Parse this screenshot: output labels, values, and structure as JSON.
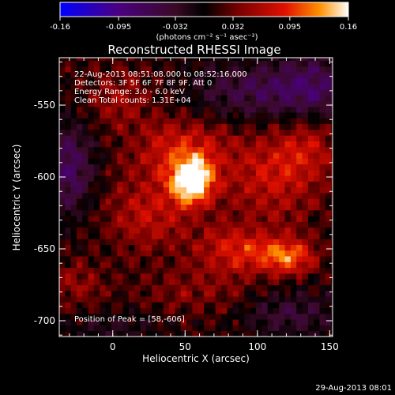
{
  "chart_data": {
    "type": "heatmap",
    "title": "Reconstructed RHESSI Image",
    "xlabel": "Heliocentric X (arcsec)",
    "ylabel": "Heliocentric Y (arcsec)",
    "xlim": [
      -37,
      152
    ],
    "ylim": [
      -711,
      -517
    ],
    "x_ticks": [
      0,
      50,
      100,
      150
    ],
    "y_ticks": [
      -550,
      -600,
      -650,
      -700
    ],
    "annotations": [
      "22-Aug-2013 08:51:08.000 to 08:52:16.000",
      "Detectors: 3F 5F 6F 7F 8F 9F, Att 0",
      "Energy Range: 3.0 - 6.0 keV",
      "Clean     Total counts: 1.31E+04"
    ],
    "peak_label": "Position of Peak = [58,-606]",
    "peak": {
      "x": 58,
      "y": -606
    },
    "colorbar": {
      "min": -0.16,
      "max": 0.16,
      "ticks": [
        "-0.16",
        "-0.095",
        "-0.032",
        "0.032",
        "0.095",
        "0.16"
      ],
      "unit_label": "(photons cm⁻² s⁻¹ asec⁻²)"
    },
    "sources": [
      {
        "x": 55,
        "y": -603,
        "amp": 0.16,
        "sx": 10,
        "sy": 11
      },
      {
        "x": 48,
        "y": -582,
        "amp": 0.075,
        "sx": 22,
        "sy": 16
      },
      {
        "x": 25,
        "y": -625,
        "amp": 0.055,
        "sx": 22,
        "sy": 18
      },
      {
        "x": 120,
        "y": -655,
        "amp": 0.1,
        "sx": 14,
        "sy": 9
      },
      {
        "x": 85,
        "y": -650,
        "amp": 0.07,
        "sx": 18,
        "sy": 12
      },
      {
        "x": 110,
        "y": -600,
        "amp": 0.06,
        "sx": 22,
        "sy": 22
      },
      {
        "x": 135,
        "y": -575,
        "amp": 0.05,
        "sx": 15,
        "sy": 18
      },
      {
        "x": 5,
        "y": -545,
        "amp": 0.04,
        "sx": 15,
        "sy": 15
      },
      {
        "x": -25,
        "y": -675,
        "amp": 0.035,
        "sx": 14,
        "sy": 12
      },
      {
        "x": 60,
        "y": -680,
        "amp": 0.03,
        "sx": 28,
        "sy": 12
      },
      {
        "x": 95,
        "y": -540,
        "amp": -0.06,
        "sx": 30,
        "sy": 14
      },
      {
        "x": 140,
        "y": -540,
        "amp": -0.07,
        "sx": 20,
        "sy": 18
      },
      {
        "x": -30,
        "y": -595,
        "amp": -0.08,
        "sx": 12,
        "sy": 22
      },
      {
        "x": 125,
        "y": -695,
        "amp": -0.05,
        "sx": 25,
        "sy": 12
      },
      {
        "x": 0,
        "y": -705,
        "amp": -0.03,
        "sx": 25,
        "sy": 8
      }
    ]
  },
  "footer": {
    "timestamp": "29-Aug-2013 08:01"
  }
}
